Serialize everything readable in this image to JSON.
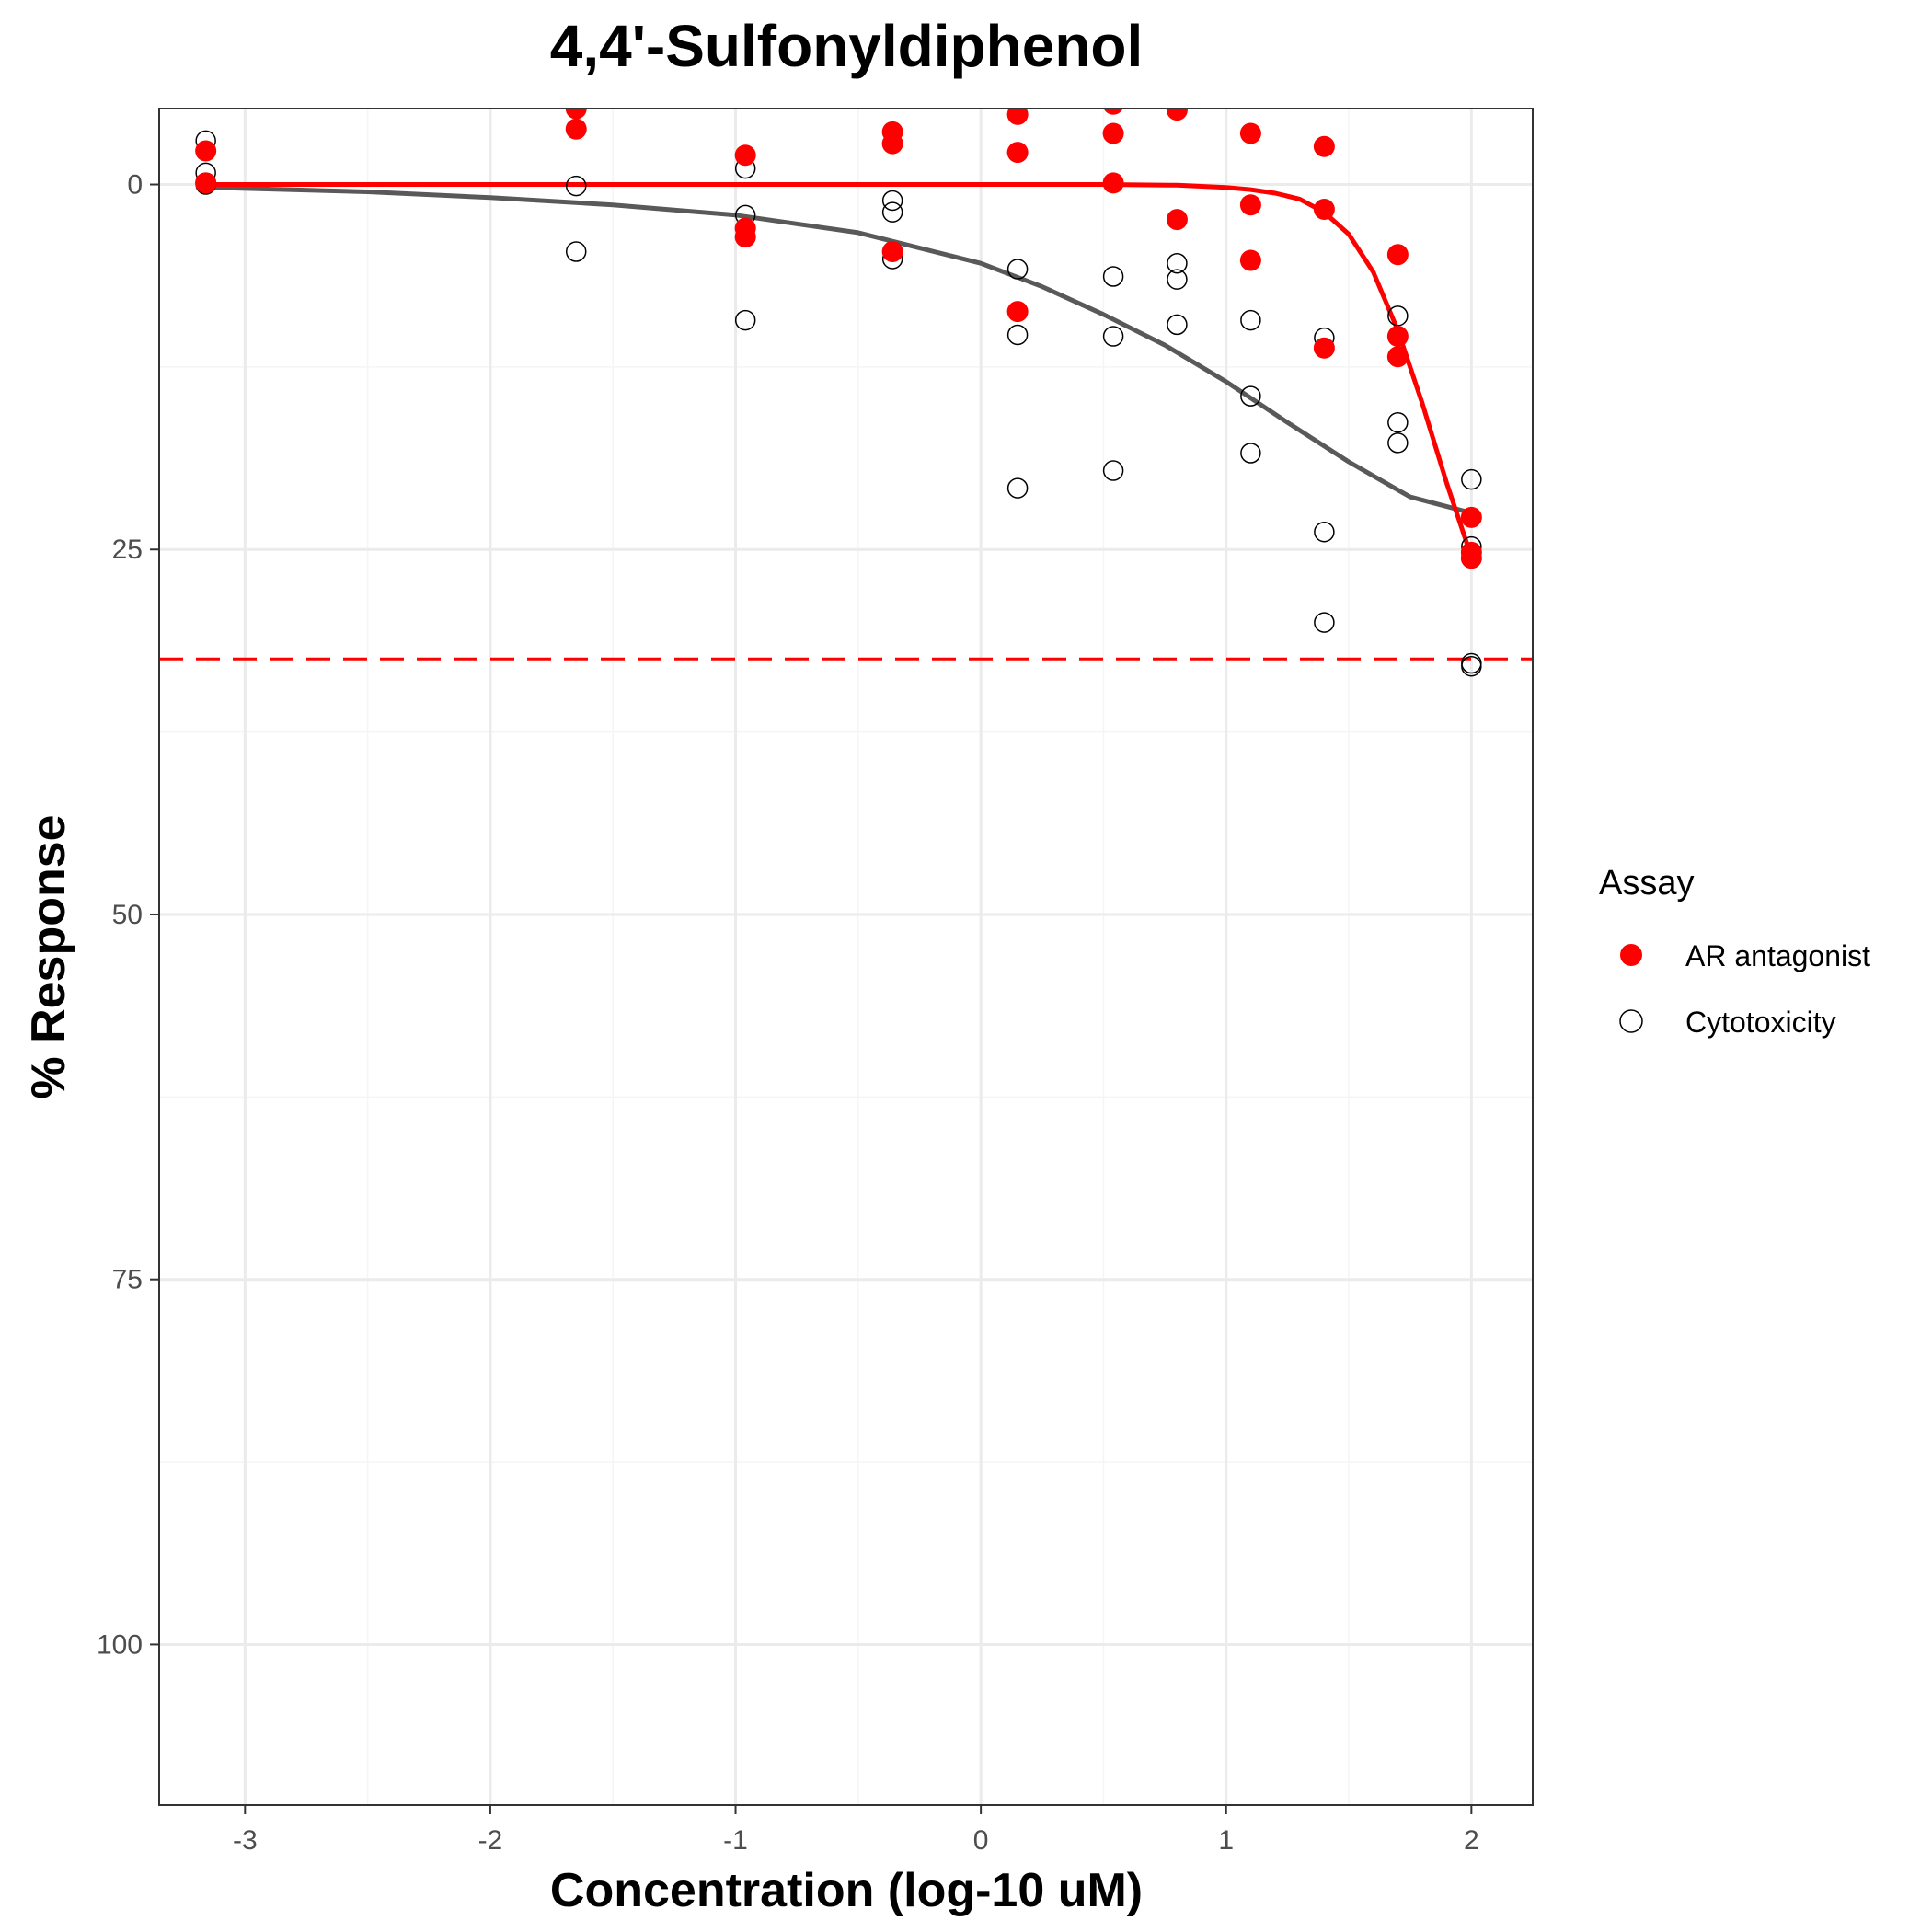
{
  "chart_data": {
    "type": "scatter",
    "title": "4,4'-Sulfonyldiphenol",
    "xlabel": "Concentration (log-10 uM)",
    "ylabel": "% Response",
    "xlim": [
      -3.35,
      2.25
    ],
    "ylim": [
      -5.2,
      111
    ],
    "y_reversed": true,
    "x_ticks": [
      -3,
      -2,
      -1,
      0,
      1,
      2
    ],
    "y_ticks": [
      0,
      25,
      50,
      75,
      100
    ],
    "grid": true,
    "legend": {
      "title": "Assay",
      "position": "right",
      "entries": [
        "AR antagonist",
        "Cytotoxicity"
      ]
    },
    "colors": {
      "ar": "#ff0000",
      "cyto_stroke": "#000000",
      "cyto_curve": "#595959",
      "grid_major": "#ebebeb",
      "grid_minor": "#f5f5f5"
    },
    "threshold": {
      "y": 32.5,
      "color": "#ff0000",
      "style": "dashed"
    },
    "series": [
      {
        "name": "AR antagonist",
        "marker": "filled-circle",
        "points": [
          [
            -3.16,
            -2.3
          ],
          [
            -3.16,
            -0.1
          ],
          [
            -3.16,
            -0.1
          ],
          [
            -1.65,
            -5.2
          ],
          [
            -1.65,
            -3.8
          ],
          [
            -0.96,
            -2.0
          ],
          [
            -0.96,
            3.0
          ],
          [
            -0.96,
            3.6
          ],
          [
            -0.36,
            -3.6
          ],
          [
            -0.36,
            -2.8
          ],
          [
            -0.36,
            4.6
          ],
          [
            0.15,
            -4.8
          ],
          [
            0.15,
            -2.2
          ],
          [
            0.15,
            8.7
          ],
          [
            0.54,
            -5.5
          ],
          [
            0.54,
            -3.5
          ],
          [
            0.54,
            -0.1
          ],
          [
            0.8,
            -5.1
          ],
          [
            0.8,
            2.4
          ],
          [
            1.1,
            -3.5
          ],
          [
            1.1,
            1.4
          ],
          [
            1.1,
            5.2
          ],
          [
            1.4,
            -2.6
          ],
          [
            1.4,
            1.7
          ],
          [
            1.4,
            11.2
          ],
          [
            1.7,
            4.8
          ],
          [
            1.7,
            10.4
          ],
          [
            1.7,
            11.8
          ],
          [
            2.0,
            22.8
          ],
          [
            2.0,
            25.2
          ],
          [
            2.0,
            25.6
          ]
        ],
        "curve": [
          [
            -3.16,
            0.0
          ],
          [
            -2.0,
            0.0
          ],
          [
            -1.0,
            0.0
          ],
          [
            0.0,
            0.0
          ],
          [
            0.5,
            0.0
          ],
          [
            0.8,
            0.05
          ],
          [
            1.0,
            0.2
          ],
          [
            1.1,
            0.35
          ],
          [
            1.2,
            0.6
          ],
          [
            1.3,
            1.0
          ],
          [
            1.4,
            1.9
          ],
          [
            1.5,
            3.4
          ],
          [
            1.6,
            6.0
          ],
          [
            1.7,
            10.0
          ],
          [
            1.8,
            15.0
          ],
          [
            1.9,
            20.5
          ],
          [
            2.0,
            25.5
          ]
        ]
      },
      {
        "name": "Cytotoxicity",
        "marker": "open-circle",
        "points": [
          [
            -3.16,
            -3.0
          ],
          [
            -3.16,
            -0.8
          ],
          [
            -3.16,
            0.0
          ],
          [
            -1.65,
            -5.2
          ],
          [
            -1.65,
            0.1
          ],
          [
            -1.65,
            4.6
          ],
          [
            -0.96,
            -1.1
          ],
          [
            -0.96,
            2.1
          ],
          [
            -0.96,
            9.3
          ],
          [
            -0.36,
            1.1
          ],
          [
            -0.36,
            1.9
          ],
          [
            -0.36,
            5.1
          ],
          [
            0.15,
            5.8
          ],
          [
            0.15,
            10.3
          ],
          [
            0.15,
            20.8
          ],
          [
            0.54,
            6.3
          ],
          [
            0.54,
            10.4
          ],
          [
            0.54,
            19.6
          ],
          [
            0.8,
            5.4
          ],
          [
            0.8,
            6.5
          ],
          [
            0.8,
            9.6
          ],
          [
            1.1,
            9.3
          ],
          [
            1.1,
            14.5
          ],
          [
            1.1,
            18.4
          ],
          [
            1.4,
            10.5
          ],
          [
            1.4,
            23.8
          ],
          [
            1.4,
            30.0
          ],
          [
            1.7,
            9.0
          ],
          [
            1.7,
            16.3
          ],
          [
            1.7,
            17.7
          ],
          [
            2.0,
            20.2
          ],
          [
            2.0,
            24.8
          ],
          [
            2.0,
            32.8
          ],
          [
            2.0,
            33.0
          ]
        ],
        "curve": [
          [
            -3.16,
            0.2
          ],
          [
            -2.5,
            0.5
          ],
          [
            -2.0,
            0.9
          ],
          [
            -1.5,
            1.4
          ],
          [
            -1.0,
            2.1
          ],
          [
            -0.5,
            3.3
          ],
          [
            0.0,
            5.4
          ],
          [
            0.25,
            7.0
          ],
          [
            0.5,
            8.9
          ],
          [
            0.75,
            11.0
          ],
          [
            1.0,
            13.5
          ],
          [
            1.25,
            16.3
          ],
          [
            1.5,
            19.0
          ],
          [
            1.75,
            21.4
          ],
          [
            2.0,
            22.5
          ]
        ]
      }
    ]
  }
}
